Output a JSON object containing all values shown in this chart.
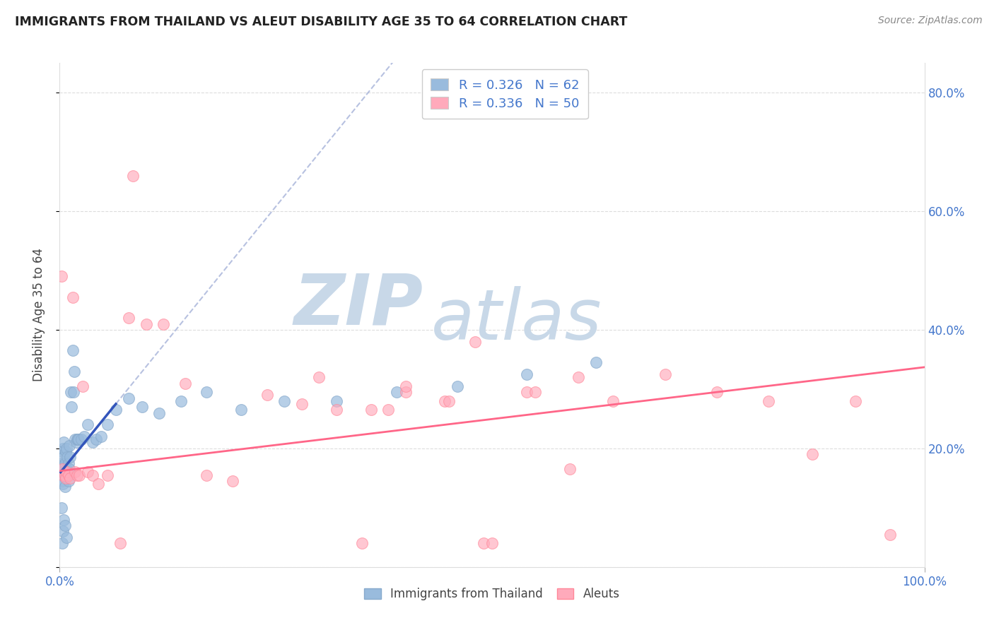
{
  "title": "IMMIGRANTS FROM THAILAND VS ALEUT DISABILITY AGE 35 TO 64 CORRELATION CHART",
  "source": "Source: ZipAtlas.com",
  "ylabel": "Disability Age 35 to 64",
  "xmin": 0.0,
  "xmax": 1.0,
  "ymin": 0.0,
  "ymax": 0.85,
  "y_tick_values": [
    0.0,
    0.2,
    0.4,
    0.6,
    0.8
  ],
  "y_tick_labels": [
    "",
    "20.0%",
    "40.0%",
    "60.0%",
    "80.0%"
  ],
  "legend_r1": "R = 0.326",
  "legend_n1": "N = 62",
  "legend_r2": "R = 0.336",
  "legend_n2": "N = 50",
  "blue_color": "#99BBDD",
  "blue_edge_color": "#88AACC",
  "pink_color": "#FFAABB",
  "pink_edge_color": "#FF8899",
  "trend_blue": "#3355BB",
  "trend_pink": "#FF6688",
  "trend_blue_dash": "#8899CC",
  "watermark_zip": "ZIP",
  "watermark_atlas": "atlas",
  "watermark_color": "#C8D8E8",
  "legend_text_color": "#4477CC",
  "blue_points_x": [
    0.001,
    0.002,
    0.002,
    0.003,
    0.003,
    0.003,
    0.004,
    0.004,
    0.004,
    0.005,
    0.005,
    0.005,
    0.006,
    0.006,
    0.006,
    0.007,
    0.007,
    0.008,
    0.008,
    0.009,
    0.009,
    0.01,
    0.01,
    0.011,
    0.011,
    0.012,
    0.013,
    0.014,
    0.015,
    0.016,
    0.017,
    0.018,
    0.019,
    0.02,
    0.021,
    0.022,
    0.025,
    0.028,
    0.032,
    0.038,
    0.042,
    0.048,
    0.055,
    0.065,
    0.08,
    0.095,
    0.115,
    0.14,
    0.17,
    0.21,
    0.26,
    0.32,
    0.39,
    0.46,
    0.54,
    0.62,
    0.002,
    0.003,
    0.004,
    0.005,
    0.006,
    0.008
  ],
  "blue_points_y": [
    0.165,
    0.175,
    0.155,
    0.195,
    0.165,
    0.145,
    0.2,
    0.17,
    0.14,
    0.21,
    0.185,
    0.155,
    0.175,
    0.155,
    0.135,
    0.195,
    0.16,
    0.2,
    0.165,
    0.185,
    0.155,
    0.175,
    0.145,
    0.205,
    0.165,
    0.185,
    0.295,
    0.27,
    0.365,
    0.295,
    0.33,
    0.215,
    0.21,
    0.215,
    0.215,
    0.215,
    0.215,
    0.22,
    0.24,
    0.21,
    0.215,
    0.22,
    0.24,
    0.265,
    0.285,
    0.27,
    0.26,
    0.28,
    0.295,
    0.265,
    0.28,
    0.28,
    0.295,
    0.305,
    0.325,
    0.345,
    0.1,
    0.04,
    0.06,
    0.08,
    0.07,
    0.05
  ],
  "pink_points_x": [
    0.002,
    0.003,
    0.004,
    0.006,
    0.007,
    0.008,
    0.01,
    0.012,
    0.015,
    0.018,
    0.02,
    0.023,
    0.027,
    0.032,
    0.038,
    0.045,
    0.055,
    0.07,
    0.085,
    0.1,
    0.12,
    0.145,
    0.17,
    0.2,
    0.24,
    0.28,
    0.32,
    0.36,
    0.4,
    0.445,
    0.49,
    0.54,
    0.59,
    0.64,
    0.7,
    0.76,
    0.82,
    0.87,
    0.92,
    0.96,
    0.5,
    0.55,
    0.6,
    0.08,
    0.48,
    0.3,
    0.35,
    0.4,
    0.45,
    0.38
  ],
  "pink_points_y": [
    0.49,
    0.165,
    0.155,
    0.155,
    0.15,
    0.16,
    0.155,
    0.15,
    0.455,
    0.16,
    0.155,
    0.155,
    0.305,
    0.16,
    0.155,
    0.14,
    0.155,
    0.04,
    0.66,
    0.41,
    0.41,
    0.31,
    0.155,
    0.145,
    0.29,
    0.275,
    0.265,
    0.265,
    0.295,
    0.28,
    0.04,
    0.295,
    0.165,
    0.28,
    0.325,
    0.295,
    0.28,
    0.19,
    0.28,
    0.055,
    0.04,
    0.295,
    0.32,
    0.42,
    0.38,
    0.32,
    0.04,
    0.305,
    0.28,
    0.265
  ]
}
